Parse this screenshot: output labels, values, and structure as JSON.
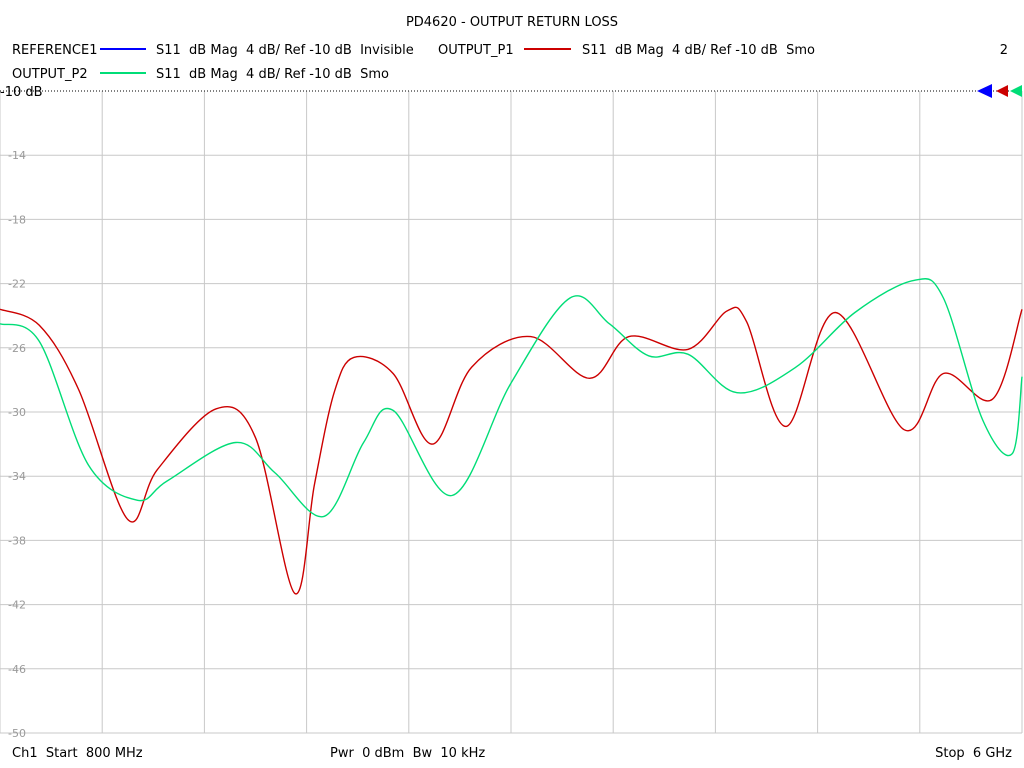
{
  "chart_data": {
    "type": "line",
    "title": "PD4620 - OUTPUT RETURN LOSS",
    "window_number": "2",
    "reference_level_label": "-10 dB",
    "x_start_label": "Ch1  Start  800 MHz",
    "x_center_label": "Pwr  0 dBm  Bw  10 kHz",
    "x_stop_label": "Stop  6 GHz",
    "xlim": [
      800,
      6000
    ],
    "ylim": [
      -50,
      -10
    ],
    "yticks": [
      -14,
      -18,
      -22,
      -26,
      -30,
      -34,
      -38,
      -42,
      -46,
      -50
    ],
    "grid": true,
    "series": [
      {
        "name": "REFERENCE1",
        "description": "S11  dB Mag  4 dB/ Ref -10 dB  Invisible",
        "color": "#0000ff",
        "visible": false,
        "x": [],
        "y": []
      },
      {
        "name": "OUTPUT_P1",
        "description": "S11  dB Mag  4 dB/ Ref -10 dB  Smo",
        "color": "#cc0000",
        "visible": true,
        "x": [
          800,
          1000,
          1200,
          1450,
          1600,
          1900,
          2100,
          2300,
          2400,
          2500,
          2600,
          2800,
          3000,
          3200,
          3500,
          3800,
          4000,
          4300,
          4500,
          4600,
          4800,
          5050,
          5400,
          5600,
          5850,
          6000
        ],
        "y": [
          -23.6,
          -24.6,
          -28.6,
          -36.7,
          -33.6,
          -29.8,
          -31.6,
          -41.3,
          -34.5,
          -28.8,
          -26.6,
          -27.6,
          -32.0,
          -27.2,
          -25.3,
          -27.9,
          -25.3,
          -26.1,
          -23.7,
          -24.4,
          -30.9,
          -23.8,
          -31.1,
          -27.6,
          -29.2,
          -23.6
        ]
      },
      {
        "name": "OUTPUT_P2",
        "description": "S11  dB Mag  4 dB/ Ref -10 dB  Smo",
        "color": "#00dd77",
        "visible": true,
        "x": [
          800,
          1000,
          1250,
          1500,
          1650,
          2000,
          2200,
          2450,
          2650,
          2800,
          3100,
          3400,
          3700,
          3900,
          4100,
          4300,
          4550,
          4850,
          5150,
          5450,
          5600,
          5800,
          5950,
          6000
        ],
        "y": [
          -24.5,
          -25.6,
          -33.3,
          -35.5,
          -34.3,
          -31.9,
          -33.8,
          -36.5,
          -31.9,
          -29.9,
          -35.2,
          -28.2,
          -22.9,
          -24.5,
          -26.5,
          -26.4,
          -28.8,
          -27.2,
          -23.8,
          -21.8,
          -22.9,
          -30.5,
          -32.6,
          -27.8
        ]
      }
    ]
  }
}
